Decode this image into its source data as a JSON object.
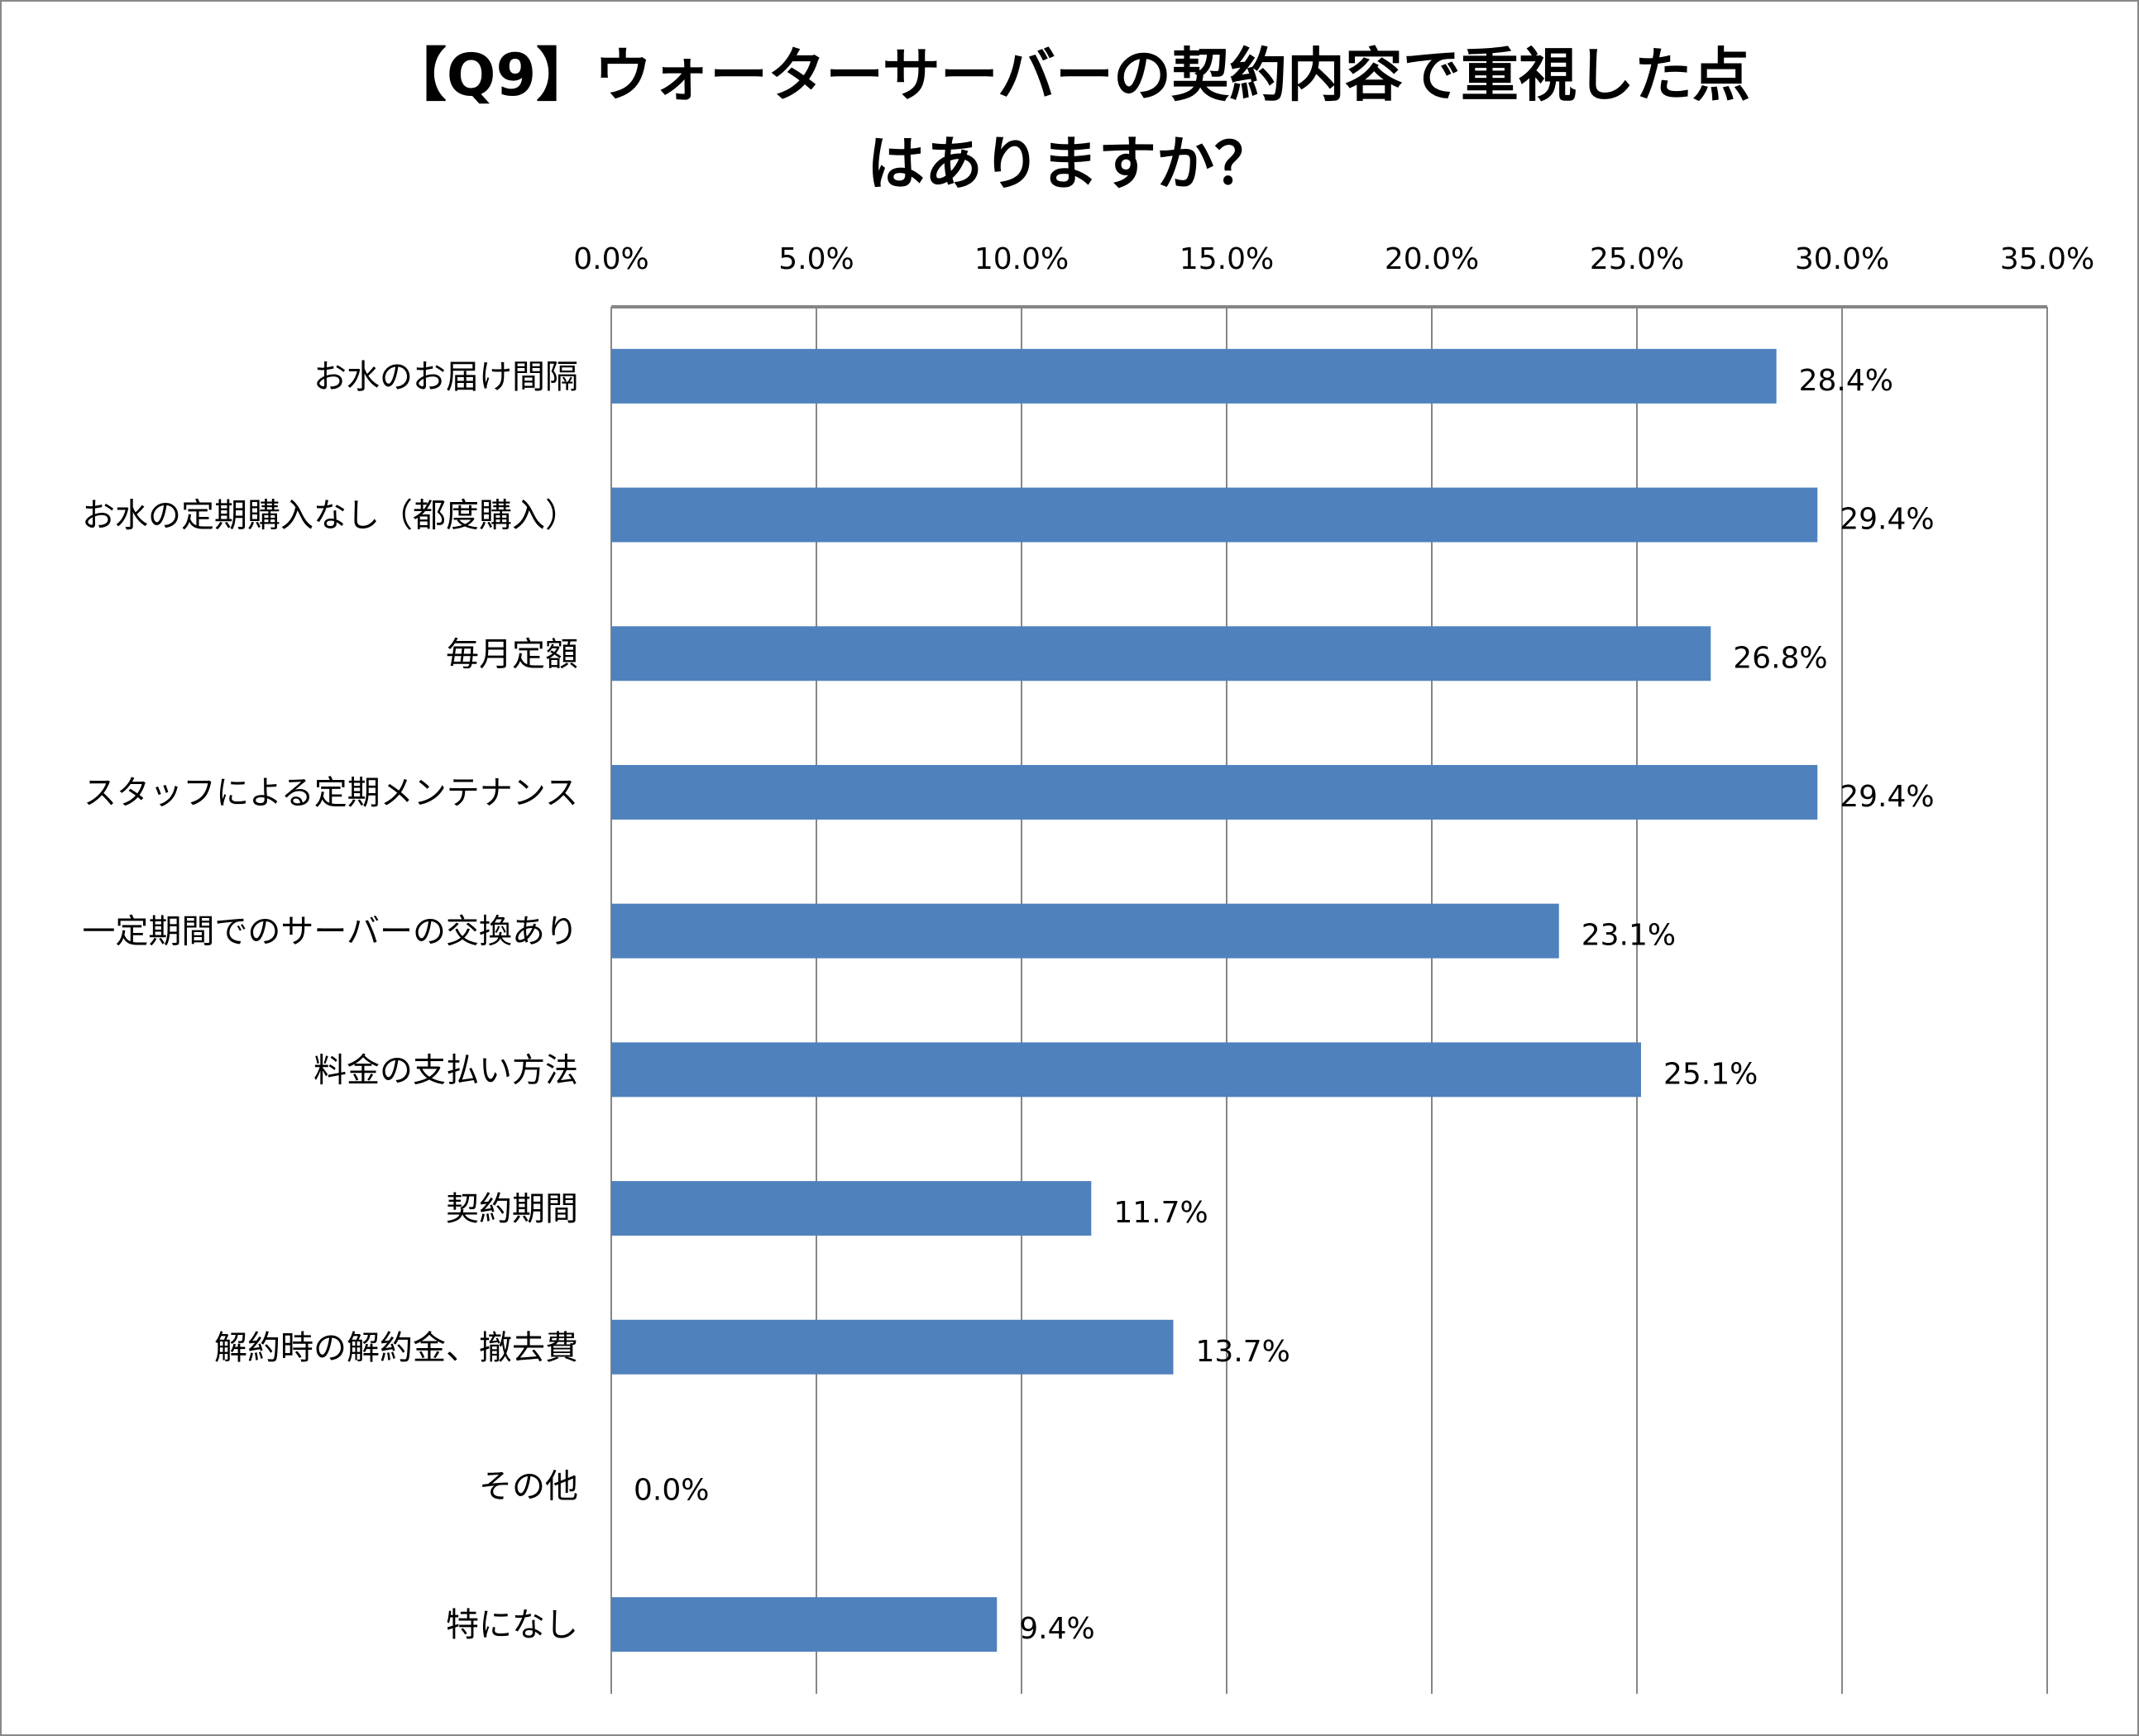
{
  "chart_data": {
    "type": "bar",
    "orientation": "horizontal",
    "title_lines": [
      "【Q9】ウォーターサーバーの契約内容で重視した点",
      "はありますか？"
    ],
    "categories": [
      "お水のお届け間隔",
      "お水の定期購入なし（都度購入）",
      "毎月定額",
      "スタッフによる定期メンテナンス",
      "一定期間でのサーバーの交換あり",
      "料金の支払い方法",
      "契約期間",
      "解約時の解約金、撤去費",
      "その他",
      "特になし"
    ],
    "values": [
      28.4,
      29.4,
      26.8,
      29.4,
      23.1,
      25.1,
      11.7,
      13.7,
      0.0,
      9.4
    ],
    "data_labels": [
      "28.4%",
      "29.4%",
      "26.8%",
      "29.4%",
      "23.1%",
      "25.1%",
      "11.7%",
      "13.7%",
      "0.0%",
      "9.4%"
    ],
    "xlim": [
      0,
      35
    ],
    "xticks": [
      0,
      5,
      10,
      15,
      20,
      25,
      30,
      35
    ],
    "xtick_labels": [
      "0.0%",
      "5.0%",
      "10.0%",
      "15.0%",
      "20.0%",
      "25.0%",
      "30.0%",
      "35.0%"
    ],
    "x_axis_position": "top",
    "grid": true,
    "bar_color": "#4F81BD",
    "grid_color": "#868686"
  }
}
